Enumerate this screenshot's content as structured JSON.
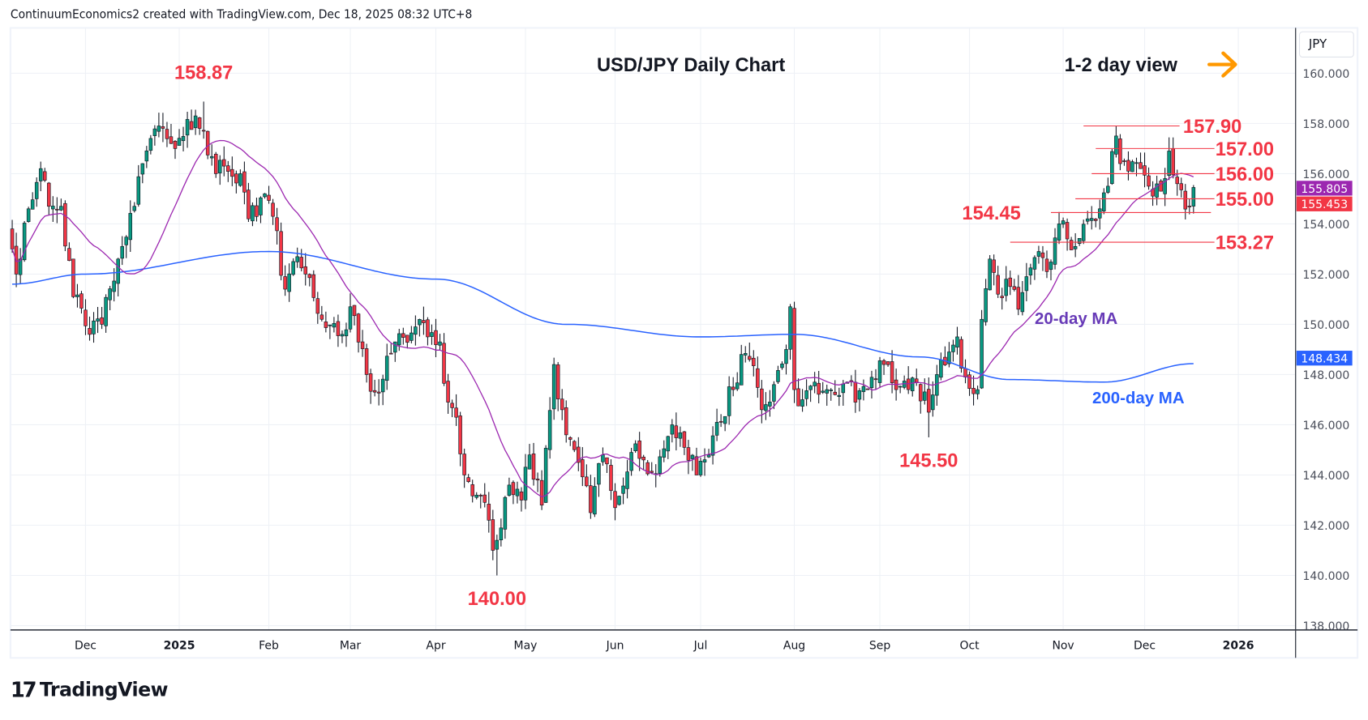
{
  "header": {
    "attribution": "ContinuumEconomics2 created with TradingView.com, Dec 18, 2025 08:32 UTC+8"
  },
  "currency_button": "JPY",
  "logo": {
    "text": "TradingView"
  },
  "colors": {
    "up": "#089981",
    "down": "#f23645",
    "ma20": "#9c27b0",
    "ma200": "#2962ff",
    "annotation": "#f23645",
    "arrow": "#ff9800",
    "grid": "#eef1f6"
  },
  "chart_data": {
    "type": "candlestick",
    "title": "USD/JPY Daily Chart",
    "subtitle": "1-2 day view",
    "ylim": [
      138,
      160.9
    ],
    "y_ticks": [
      "160.000",
      "158.000",
      "156.000",
      "154.000",
      "152.000",
      "150.000",
      "148.000",
      "146.000",
      "144.000",
      "142.000",
      "140.000",
      "138.000"
    ],
    "y_tick_values": [
      160,
      158,
      156,
      154,
      152,
      150,
      148,
      146,
      144,
      142,
      140,
      138
    ],
    "x_ticks": [
      {
        "date": "2024-12-02",
        "label": "Dec",
        "bold": false
      },
      {
        "date": "2025-01-02",
        "label": "2025",
        "bold": true
      },
      {
        "date": "2025-02-03",
        "label": "Feb",
        "bold": false
      },
      {
        "date": "2025-03-03",
        "label": "Mar",
        "bold": false
      },
      {
        "date": "2025-04-01",
        "label": "Apr",
        "bold": false
      },
      {
        "date": "2025-05-01",
        "label": "May",
        "bold": false
      },
      {
        "date": "2025-06-02",
        "label": "Jun",
        "bold": false
      },
      {
        "date": "2025-07-01",
        "label": "Jul",
        "bold": false
      },
      {
        "date": "2025-08-01",
        "label": "Aug",
        "bold": false
      },
      {
        "date": "2025-09-01",
        "label": "Sep",
        "bold": false
      },
      {
        "date": "2025-10-01",
        "label": "Oct",
        "bold": false
      },
      {
        "date": "2025-11-03",
        "label": "Nov",
        "bold": false
      },
      {
        "date": "2025-12-01",
        "label": "Dec",
        "bold": false
      },
      {
        "date": "2026-01-01",
        "label": "2026",
        "bold": true
      }
    ],
    "date_range": [
      "2024-11-06",
      "2025-12-17"
    ],
    "close_anchors": [
      [
        "2024-11-06",
        153.0
      ],
      [
        "2024-11-07",
        152.0
      ],
      [
        "2024-11-08",
        152.6
      ],
      [
        "2024-11-12",
        154.6
      ],
      [
        "2024-11-15",
        156.2
      ],
      [
        "2024-11-19",
        154.7
      ],
      [
        "2024-11-22",
        154.7
      ],
      [
        "2024-11-27",
        151.1
      ],
      [
        "2024-12-03",
        149.6
      ],
      [
        "2024-12-06",
        150.0
      ],
      [
        "2024-12-12",
        152.6
      ],
      [
        "2024-12-18",
        154.7
      ],
      [
        "2024-12-20",
        156.4
      ],
      [
        "2024-12-26",
        157.9
      ],
      [
        "2024-12-31",
        157.2
      ],
      [
        "2025-01-08",
        158.3
      ],
      [
        "2025-01-10",
        157.7
      ],
      [
        "2025-01-15",
        156.0
      ],
      [
        "2025-01-17",
        156.3
      ],
      [
        "2025-01-23",
        156.0
      ],
      [
        "2025-01-27",
        154.2
      ],
      [
        "2025-01-31",
        155.2
      ],
      [
        "2025-02-04",
        154.3
      ],
      [
        "2025-02-07",
        151.4
      ],
      [
        "2025-02-11",
        152.5
      ],
      [
        "2025-02-14",
        152.0
      ],
      [
        "2025-02-20",
        150.2
      ],
      [
        "2025-02-27",
        149.6
      ],
      [
        "2025-03-03",
        150.7
      ],
      [
        "2025-03-07",
        148.0
      ],
      [
        "2025-03-11",
        147.3
      ],
      [
        "2025-03-18",
        149.3
      ],
      [
        "2025-03-25",
        149.9
      ],
      [
        "2025-03-28",
        149.5
      ],
      [
        "2025-04-02",
        149.3
      ],
      [
        "2025-04-04",
        146.9
      ],
      [
        "2025-04-08",
        146.3
      ],
      [
        "2025-04-10",
        144.0
      ],
      [
        "2025-04-15",
        143.2
      ],
      [
        "2025-04-18",
        142.2
      ],
      [
        "2025-04-21",
        141.0
      ],
      [
        "2025-04-22",
        141.4
      ],
      [
        "2025-04-25",
        143.6
      ],
      [
        "2025-04-30",
        143.0
      ],
      [
        "2025-05-02",
        144.8
      ],
      [
        "2025-05-07",
        142.8
      ],
      [
        "2025-05-12",
        148.4
      ],
      [
        "2025-05-15",
        145.6
      ],
      [
        "2025-05-20",
        144.5
      ],
      [
        "2025-05-23",
        142.5
      ],
      [
        "2025-05-28",
        144.8
      ],
      [
        "2025-06-02",
        142.7
      ],
      [
        "2025-06-06",
        144.9
      ],
      [
        "2025-06-11",
        144.6
      ],
      [
        "2025-06-13",
        144.1
      ],
      [
        "2025-06-20",
        146.0
      ],
      [
        "2025-06-25",
        145.1
      ],
      [
        "2025-06-30",
        144.0
      ],
      [
        "2025-07-03",
        144.8
      ],
      [
        "2025-07-07",
        146.1
      ],
      [
        "2025-07-11",
        147.4
      ],
      [
        "2025-07-15",
        148.8
      ],
      [
        "2025-07-17",
        148.6
      ],
      [
        "2025-07-22",
        146.6
      ],
      [
        "2025-07-25",
        147.6
      ],
      [
        "2025-07-30",
        149.0
      ],
      [
        "2025-07-31",
        150.7
      ],
      [
        "2025-08-01",
        147.4
      ],
      [
        "2025-08-05",
        147.0
      ],
      [
        "2025-08-08",
        147.7
      ],
      [
        "2025-08-13",
        147.4
      ],
      [
        "2025-08-15",
        147.2
      ],
      [
        "2025-08-20",
        147.7
      ],
      [
        "2025-08-22",
        146.9
      ],
      [
        "2025-08-27",
        147.4
      ],
      [
        "2025-09-02",
        148.4
      ],
      [
        "2025-09-05",
        147.4
      ],
      [
        "2025-09-10",
        147.4
      ],
      [
        "2025-09-12",
        147.7
      ],
      [
        "2025-09-17",
        146.5
      ],
      [
        "2025-09-19",
        148.0
      ],
      [
        "2025-09-24",
        148.9
      ],
      [
        "2025-09-26",
        149.5
      ],
      [
        "2025-09-30",
        147.9
      ],
      [
        "2025-10-03",
        147.4
      ],
      [
        "2025-10-06",
        150.2
      ],
      [
        "2025-10-08",
        152.6
      ],
      [
        "2025-10-10",
        151.2
      ],
      [
        "2025-10-14",
        151.8
      ],
      [
        "2025-10-17",
        150.6
      ],
      [
        "2025-10-21",
        151.9
      ],
      [
        "2025-10-24",
        152.9
      ],
      [
        "2025-10-28",
        152.1
      ],
      [
        "2025-10-31",
        154.0
      ],
      [
        "2025-11-04",
        153.4
      ],
      [
        "2025-11-06",
        153.1
      ],
      [
        "2025-11-11",
        154.2
      ],
      [
        "2025-11-14",
        154.6
      ],
      [
        "2025-11-18",
        155.5
      ],
      [
        "2025-11-20",
        157.5
      ],
      [
        "2025-11-21",
        156.4
      ],
      [
        "2025-11-25",
        156.1
      ],
      [
        "2025-11-28",
        156.2
      ],
      [
        "2025-12-02",
        155.5
      ],
      [
        "2025-12-05",
        155.3
      ],
      [
        "2025-12-09",
        156.9
      ],
      [
        "2025-12-11",
        155.6
      ],
      [
        "2025-12-16",
        154.7
      ],
      [
        "2025-12-17",
        155.45
      ]
    ],
    "extremes": [
      [
        "2025-01-10",
        "high",
        158.87
      ],
      [
        "2025-04-22",
        "low",
        140.0
      ],
      [
        "2025-09-17",
        "low",
        145.5
      ],
      [
        "2025-11-20",
        "high",
        157.9
      ],
      [
        "2025-08-01",
        "high",
        150.9
      ]
    ],
    "ma200_anchors": [
      [
        "2024-11-06",
        151.6
      ],
      [
        "2024-12-02",
        152.0
      ],
      [
        "2025-02-03",
        152.9
      ],
      [
        "2025-04-01",
        151.8
      ],
      [
        "2025-05-15",
        150.0
      ],
      [
        "2025-07-01",
        149.5
      ],
      [
        "2025-08-01",
        149.6
      ],
      [
        "2025-09-15",
        148.7
      ],
      [
        "2025-10-15",
        147.8
      ],
      [
        "2025-11-15",
        147.7
      ],
      [
        "2025-12-17",
        148.434
      ]
    ],
    "series": [
      {
        "name": "20-day MA",
        "last_value": "155.805"
      },
      {
        "name": "200-day MA",
        "last_value": "148.434"
      }
    ],
    "last_price": "155.453",
    "levels": [
      {
        "value": 157.9,
        "label": "157.90",
        "from": "2025-11-10"
      },
      {
        "value": 157.0,
        "label": "157.00",
        "from": "2025-11-13"
      },
      {
        "value": 156.0,
        "label": "156.00",
        "from": "2025-11-12"
      },
      {
        "value": 155.0,
        "label": "155.00",
        "from": "2025-11-06"
      },
      {
        "value": 154.45,
        "label": "154.45",
        "from": "2025-10-29"
      },
      {
        "value": 153.27,
        "label": "153.27",
        "from": "2025-10-15"
      }
    ],
    "annotations": [
      {
        "text": "158.87",
        "date": "2025-01-10",
        "price": 158.87,
        "pos": "above"
      },
      {
        "text": "140.00",
        "date": "2025-04-22",
        "price": 140.0,
        "pos": "below"
      },
      {
        "text": "145.50",
        "date": "2025-09-17",
        "price": 145.5,
        "pos": "below"
      }
    ],
    "ma_labels": {
      "ma20": "20-day MA",
      "ma200": "200-day MA"
    }
  }
}
